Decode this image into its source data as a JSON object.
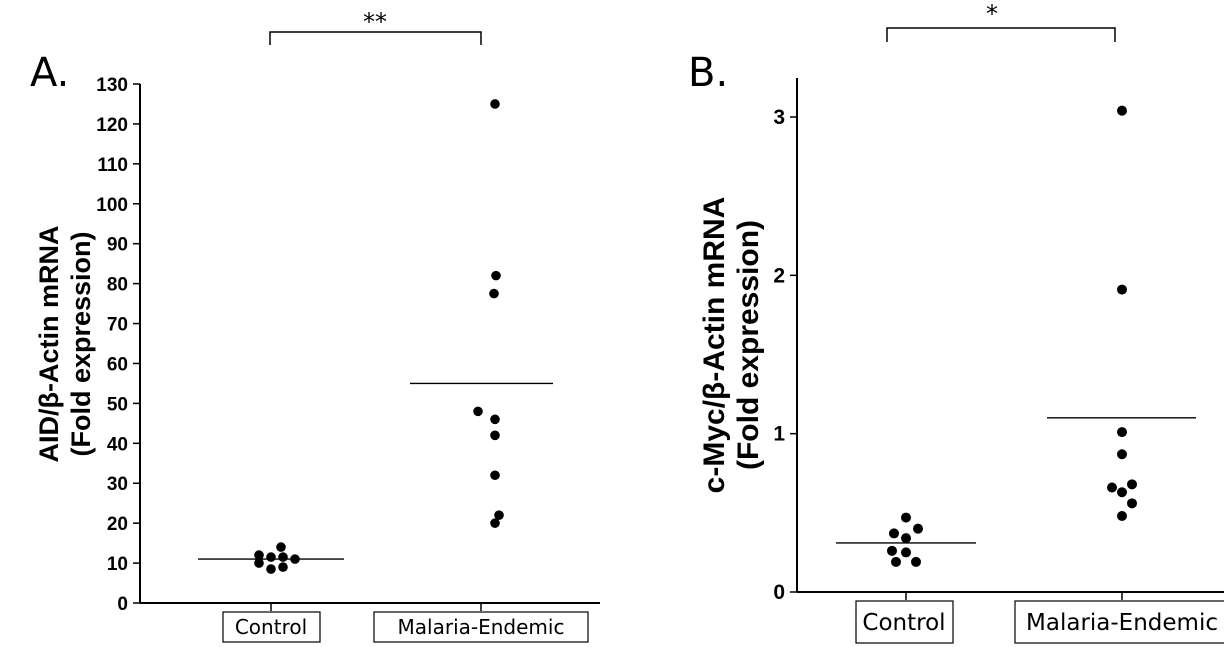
{
  "chart_data": [
    {
      "type": "scatter",
      "panel_label": "A.",
      "ylabel_line1": "AID/β-Actin mRNA",
      "ylabel_line2": "(Fold expression)",
      "ylim": [
        0,
        130
      ],
      "yticks": [
        "0",
        "10",
        "20",
        "30",
        "40",
        "50",
        "60",
        "70",
        "80",
        "90",
        "100",
        "110",
        "120",
        "130"
      ],
      "categories": [
        "Control",
        "Malaria-Endemic"
      ],
      "series": [
        {
          "category": "Control",
          "values": [
            12,
            11.5,
            11.5,
            14,
            11,
            10,
            8.5,
            9
          ],
          "mean": 11
        },
        {
          "category": "Malaria-Endemic",
          "values": [
            125,
            82,
            77.5,
            48,
            46,
            42,
            32,
            22,
            20
          ],
          "mean": 55
        }
      ],
      "significance": "**"
    },
    {
      "type": "scatter",
      "panel_label": "B.",
      "ylabel_line1": "c-Myc/β-Actin mRNA",
      "ylabel_line2": "(Fold expression)",
      "ylim": [
        0,
        3.2
      ],
      "yticks": [
        "0",
        "1",
        "2",
        "3"
      ],
      "categories": [
        "Control",
        "Malaria-Endemic"
      ],
      "series": [
        {
          "category": "Control",
          "values": [
            0.47,
            0.37,
            0.4,
            0.34,
            0.26,
            0.25,
            0.19,
            0.19
          ],
          "mean": 0.31
        },
        {
          "category": "Malaria-Endemic",
          "values": [
            3.04,
            1.91,
            1.01,
            0.87,
            0.68,
            0.66,
            0.63,
            0.56,
            0.48
          ],
          "mean": 1.1
        }
      ],
      "significance": "*"
    }
  ]
}
